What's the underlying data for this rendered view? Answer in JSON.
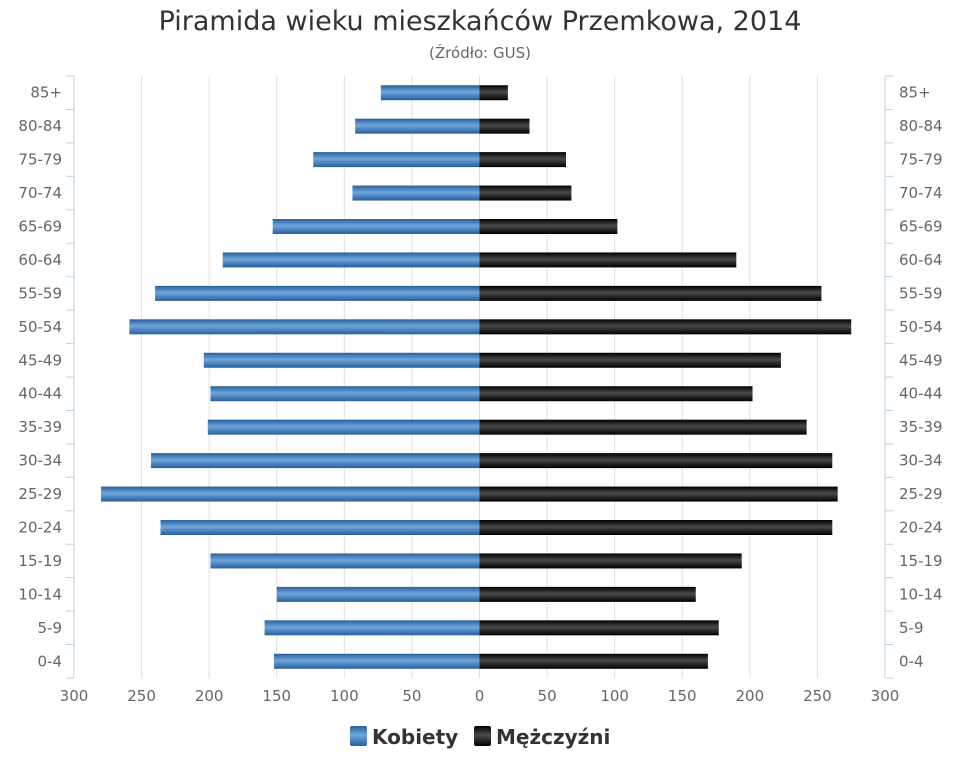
{
  "chart_data": {
    "type": "bar",
    "orientation": "horizontal-pyramid",
    "title": "Piramida wieku mieszkańców Przemkowa, 2014",
    "subtitle": "(Źródło: GUS)",
    "categories": [
      "0-4",
      "5-9",
      "10-14",
      "15-19",
      "20-24",
      "25-29",
      "30-34",
      "35-39",
      "40-44",
      "45-49",
      "50-54",
      "55-59",
      "60-64",
      "65-69",
      "70-74",
      "75-79",
      "80-84",
      "85+"
    ],
    "series": [
      {
        "name": "Kobiety",
        "side": "left",
        "color": "#3d7fc1",
        "values": [
          152,
          159,
          150,
          199,
          236,
          280,
          243,
          201,
          199,
          204,
          259,
          240,
          190,
          153,
          94,
          123,
          92,
          73
        ]
      },
      {
        "name": "Mężczyźni",
        "side": "right",
        "color": "#1a1a1a",
        "values": [
          169,
          177,
          160,
          194,
          261,
          265,
          261,
          242,
          202,
          223,
          275,
          253,
          190,
          102,
          68,
          64,
          37,
          21
        ]
      }
    ],
    "xlim": [
      -300,
      300
    ],
    "x_ticks": [
      "300",
      "250",
      "200",
      "150",
      "100",
      "50",
      "0",
      "50",
      "100",
      "150",
      "200",
      "250",
      "300"
    ],
    "grid": true,
    "legend": "bottom-center"
  }
}
